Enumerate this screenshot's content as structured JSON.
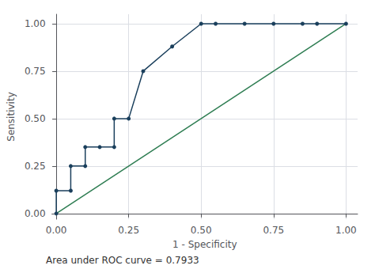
{
  "chart_data": {
    "type": "line",
    "xlabel": "1 - Specificity",
    "ylabel": "Sensitivity",
    "annotation": "Area under ROC curve = 0.7933",
    "series": [
      {
        "color": "#1a3f5c",
        "marker": "circle",
        "x": [
          0.0,
          0.0,
          0.05,
          0.05,
          0.1,
          0.1,
          0.15,
          0.2,
          0.2,
          0.25,
          0.3,
          0.4,
          0.5,
          0.55,
          0.65,
          0.75,
          0.85,
          0.9,
          1.0
        ],
        "values": [
          0.0,
          0.12,
          0.12,
          0.25,
          0.25,
          0.35,
          0.35,
          0.35,
          0.5,
          0.5,
          0.75,
          0.88,
          1.0,
          1.0,
          1.0,
          1.0,
          1.0,
          1.0,
          1.0
        ]
      },
      {
        "color": "#2e7d52",
        "x": [
          0.0,
          1.0
        ],
        "values": [
          0.0,
          1.0
        ]
      }
    ],
    "xlim": [
      -0.015,
      1.04
    ],
    "ylim": [
      -0.03,
      1.05
    ],
    "xticks": [
      {
        "value": 0,
        "label": "0.00"
      },
      {
        "value": 0.25,
        "label": "0.25"
      },
      {
        "value": 0.5,
        "label": "0.50"
      },
      {
        "value": 0.75,
        "label": "0.75"
      },
      {
        "value": 1,
        "label": "1.00"
      }
    ],
    "yticks": [
      {
        "value": 0,
        "label": "0.00"
      },
      {
        "value": 0.25,
        "label": "0.25"
      },
      {
        "value": 0.5,
        "label": "0.50"
      },
      {
        "value": 0.75,
        "label": "0.75"
      },
      {
        "value": 1,
        "label": "1.00"
      }
    ],
    "grid": true
  }
}
